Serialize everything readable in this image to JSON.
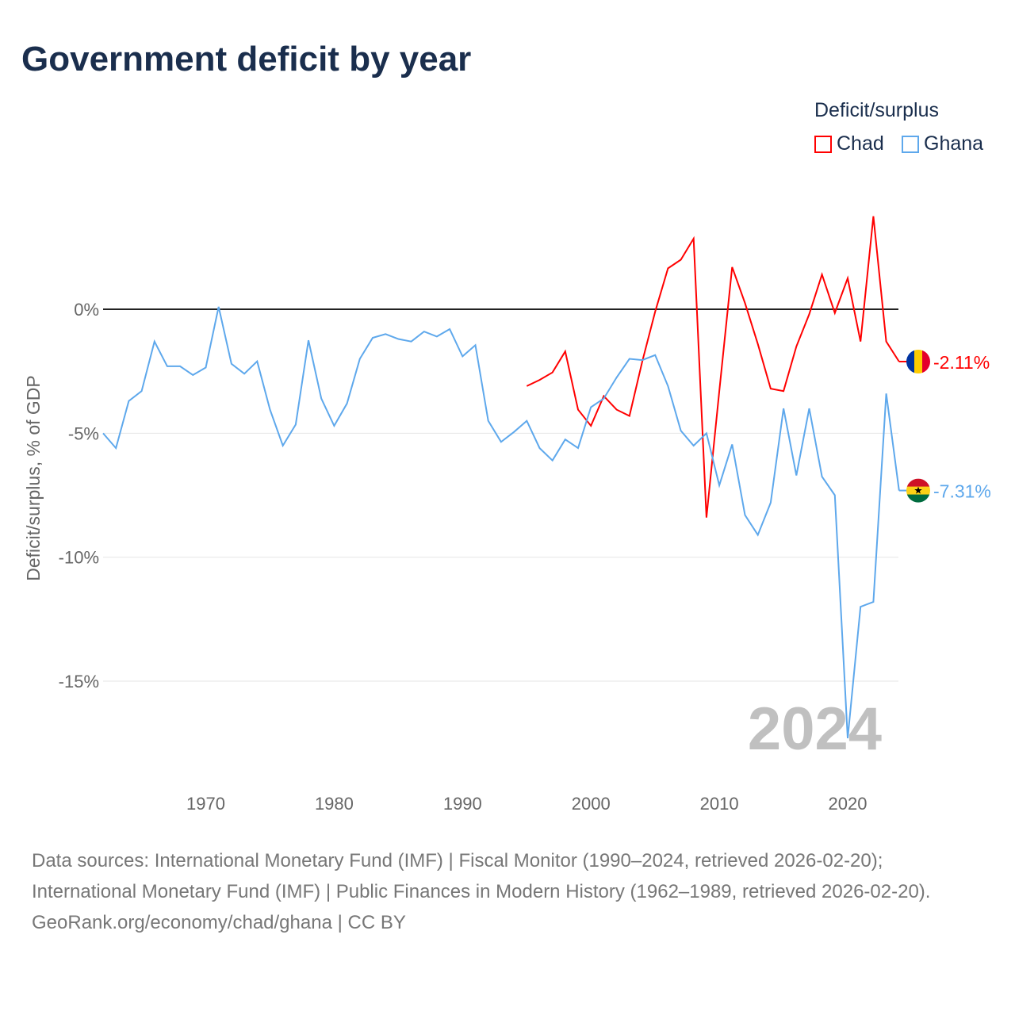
{
  "title": "Government deficit by year",
  "legend": {
    "title": "Deficit/surplus",
    "items": [
      "Chad",
      "Ghana"
    ]
  },
  "watermark_year": "2024",
  "footer": {
    "line1": "Data sources: International Monetary Fund (IMF) | Fiscal Monitor (1990–2024, retrieved 2026-02-20); International Monetary Fund (IMF) | Public Finances in Modern History (1962–1989, retrieved 2026-02-20).",
    "line2": "GeoRank.org/economy/chad/ghana | CC BY"
  },
  "chart_data": {
    "type": "line",
    "title": "Government deficit by year",
    "xlabel": "",
    "ylabel": "Deficit/surplus, % of GDP",
    "xlim": [
      1962,
      2024
    ],
    "ylim": [
      -18.5,
      4.5
    ],
    "xticks": [
      1970,
      1980,
      1990,
      2000,
      2010,
      2020
    ],
    "yticks": [
      0,
      -5,
      -10,
      -15
    ],
    "ytick_labels": [
      "0%",
      "-5%",
      "-10%",
      "-15%"
    ],
    "series": [
      {
        "name": "Chad",
        "color": "#ff0000",
        "end_label": "-2.11%",
        "x": [
          1995,
          1996,
          1997,
          1998,
          1999,
          2000,
          2001,
          2002,
          2003,
          2004,
          2005,
          2006,
          2007,
          2008,
          2009,
          2010,
          2011,
          2012,
          2013,
          2014,
          2015,
          2016,
          2017,
          2018,
          2019,
          2020,
          2021,
          2022,
          2023,
          2024
        ],
        "y": [
          -3.1,
          -2.85,
          -2.55,
          -1.7,
          -4.05,
          -4.7,
          -3.5,
          -4.05,
          -4.3,
          -2.1,
          -0.1,
          1.65,
          2.0,
          2.85,
          -8.4,
          -3.3,
          1.7,
          0.25,
          -1.4,
          -3.2,
          -3.3,
          -1.5,
          -0.2,
          1.4,
          -0.15,
          1.25,
          -1.3,
          3.75,
          -1.3,
          -2.11
        ]
      },
      {
        "name": "Ghana",
        "color": "#5ea8ec",
        "end_label": "-7.31%",
        "x": [
          1962,
          1963,
          1964,
          1965,
          1966,
          1967,
          1968,
          1969,
          1970,
          1971,
          1972,
          1973,
          1974,
          1975,
          1976,
          1977,
          1978,
          1979,
          1980,
          1981,
          1982,
          1983,
          1984,
          1985,
          1986,
          1987,
          1988,
          1989,
          1990,
          1991,
          1992,
          1993,
          1994,
          1995,
          1996,
          1997,
          1998,
          1999,
          2000,
          2001,
          2002,
          2003,
          2004,
          2005,
          2006,
          2007,
          2008,
          2009,
          2010,
          2011,
          2012,
          2013,
          2014,
          2015,
          2016,
          2017,
          2018,
          2019,
          2020,
          2021,
          2022,
          2023,
          2024
        ],
        "y": [
          -5.0,
          -5.6,
          -3.7,
          -3.3,
          -1.3,
          -2.3,
          -2.3,
          -2.65,
          -2.35,
          0.1,
          -2.2,
          -2.6,
          -2.1,
          -4.05,
          -5.5,
          -4.65,
          -1.25,
          -3.6,
          -4.7,
          -3.8,
          -2.0,
          -1.15,
          -1.0,
          -1.2,
          -1.3,
          -0.9,
          -1.1,
          -0.8,
          -1.9,
          -1.45,
          -4.5,
          -5.35,
          -4.95,
          -4.5,
          -5.6,
          -6.1,
          -5.25,
          -5.6,
          -3.95,
          -3.6,
          -2.75,
          -2.0,
          -2.05,
          -1.85,
          -3.1,
          -4.9,
          -5.5,
          -5.0,
          -7.1,
          -5.45,
          -8.3,
          -9.1,
          -7.8,
          -4.0,
          -6.7,
          -4.0,
          -6.75,
          -7.5,
          -17.3,
          -12.0,
          -11.8,
          -3.4,
          -7.31
        ]
      }
    ],
    "grid": true,
    "legend_position": "top-right"
  }
}
